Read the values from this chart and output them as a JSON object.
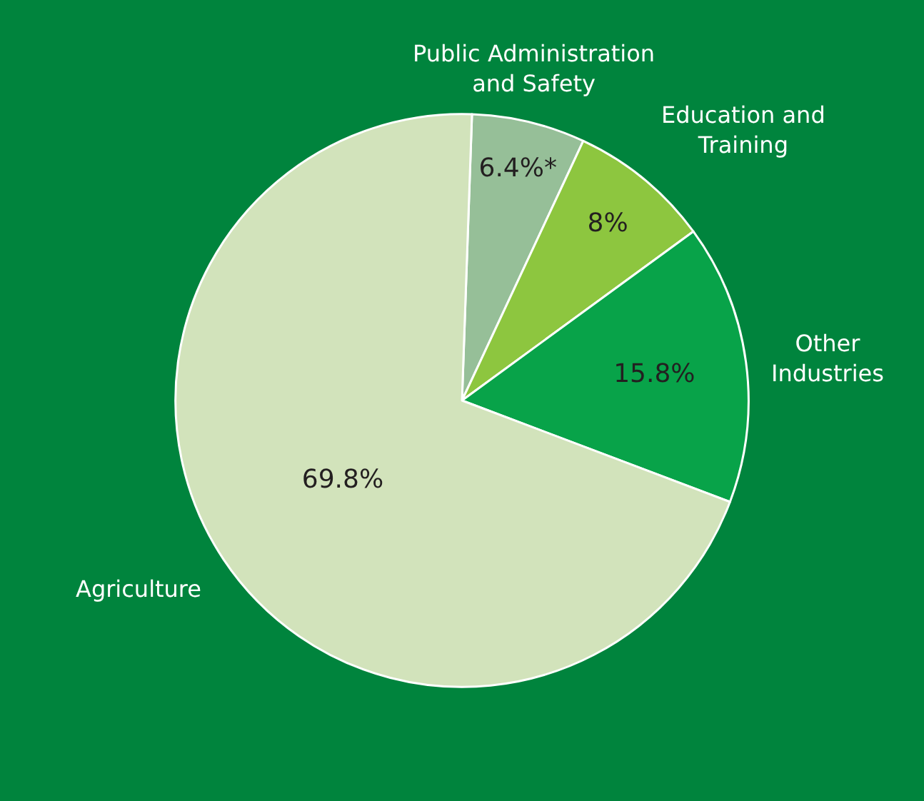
{
  "chart_data": {
    "type": "pie",
    "categories": [
      "Public Administration\nand Safety",
      "Education and\nTraining",
      "Other\nIndustries",
      "Agriculture"
    ],
    "values": [
      6.4,
      8,
      15.8,
      69.8
    ],
    "value_labels": [
      "6.4%*",
      "8%",
      "15.8%",
      "69.8%"
    ],
    "colors": [
      "#96bf98",
      "#8dc63f",
      "#08a349",
      "#d2e3bb"
    ]
  }
}
